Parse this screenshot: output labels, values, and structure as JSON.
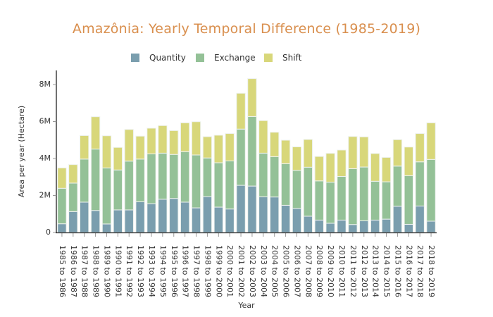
{
  "chart_data": {
    "type": "bar",
    "stacked": true,
    "title": "Amazônia: Yearly Temporal Difference (1985-2019)",
    "xlabel": "Year",
    "ylabel": "Area per year (Hectare)",
    "ylim": [
      0,
      8800000
    ],
    "yticks": [
      0,
      2000000,
      4000000,
      6000000,
      8000000
    ],
    "ytick_labels": [
      "0",
      "2M",
      "4M",
      "6M",
      "8M"
    ],
    "grid": false,
    "legend_position": "top-center",
    "categories": [
      "1985 to 1986",
      "1986 to 1987",
      "1987 to 1988",
      "1988 to 1989",
      "1989 to 1990",
      "1990 to 1991",
      "1991 to 1992",
      "1992 to 1993",
      "1993 to 1994",
      "1994 to 1995",
      "1995 to 1996",
      "1996 to 1997",
      "1997 to 1998",
      "1998 to 1999",
      "1999 to 2000",
      "2000 to 2001",
      "2001 to 2002",
      "2002 to 2003",
      "2003 to 2004",
      "2004 to 2005",
      "2005 to 2006",
      "2006 to 2007",
      "2007 to 2008",
      "2008 to 2009",
      "2009 to 2010",
      "2010 to 2011",
      "2011 to 2012",
      "2012 to 2013",
      "2013 to 2014",
      "2014 to 2015",
      "2015 to 2016",
      "2016 to 2017",
      "2017 to 2018",
      "2018 to 2019"
    ],
    "series": [
      {
        "name": "Quantity",
        "color": "#7a9eae",
        "values": [
          470000,
          1130000,
          1640000,
          1190000,
          460000,
          1220000,
          1220000,
          1660000,
          1560000,
          1800000,
          1840000,
          1640000,
          1330000,
          1940000,
          1370000,
          1270000,
          2550000,
          2510000,
          1930000,
          1920000,
          1470000,
          1300000,
          880000,
          670000,
          500000,
          670000,
          430000,
          630000,
          670000,
          720000,
          1420000,
          440000,
          1430000,
          610000
        ]
      },
      {
        "name": "Exchange",
        "color": "#94c197",
        "values": [
          1920000,
          1540000,
          2330000,
          3320000,
          3030000,
          2160000,
          2640000,
          2310000,
          2690000,
          2490000,
          2380000,
          2730000,
          2860000,
          2090000,
          2400000,
          2600000,
          3040000,
          3760000,
          2360000,
          2180000,
          2250000,
          2060000,
          2650000,
          2120000,
          2220000,
          2360000,
          3020000,
          2910000,
          2100000,
          2020000,
          2170000,
          2630000,
          2390000,
          3340000
        ]
      },
      {
        "name": "Shift",
        "color": "#d8d77a",
        "values": [
          1100000,
          1000000,
          1270000,
          1750000,
          1740000,
          1220000,
          1710000,
          1240000,
          1390000,
          1490000,
          1290000,
          1560000,
          1800000,
          1150000,
          1490000,
          1480000,
          1940000,
          2050000,
          1760000,
          1320000,
          1270000,
          1270000,
          1500000,
          1320000,
          1560000,
          1430000,
          1740000,
          1630000,
          1500000,
          1320000,
          1430000,
          1550000,
          1530000,
          1980000
        ]
      }
    ]
  }
}
